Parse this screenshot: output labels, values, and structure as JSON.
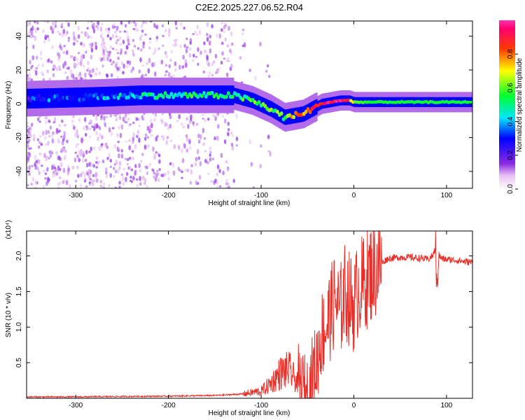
{
  "title": "C2E2.2025.227.06.52.R04",
  "chart_data": [
    {
      "type": "heatmap",
      "xlabel": "Height of straight line (km)",
      "ylabel": "Frequency (Hz)",
      "xlim": [
        -353,
        128
      ],
      "ylim": [
        -50,
        49
      ],
      "xticks": [
        -300,
        -200,
        -100,
        0,
        100
      ],
      "yticks": [
        -40,
        -20,
        0,
        20,
        40
      ],
      "colorbar": {
        "label": "Normalized spectral amplitude",
        "range": [
          0,
          1
        ],
        "ticks": [
          "0.0",
          "0.2",
          "0.4",
          "0.6",
          "0.8"
        ]
      },
      "ridge": {
        "x": [
          -353,
          -280,
          -230,
          -180,
          -130,
          -110,
          -90,
          -75,
          -65,
          -55,
          -45,
          -35,
          -25,
          -15,
          -5,
          0,
          20,
          60,
          100,
          128
        ],
        "frequency": [
          3,
          4,
          5,
          5,
          5,
          2,
          -3,
          -8,
          -7,
          -6,
          -3,
          0,
          1,
          2,
          2,
          1,
          1,
          1,
          1,
          1
        ],
        "amplitude": [
          0.3,
          0.35,
          0.45,
          0.5,
          0.5,
          0.55,
          0.6,
          0.55,
          0.75,
          0.8,
          0.85,
          0.9,
          0.95,
          0.95,
          0.9,
          0.6,
          0.55,
          0.55,
          0.55,
          0.55
        ]
      },
      "scatter_note": ""
    },
    {
      "type": "line",
      "xlabel": "Height of straight line (km)",
      "ylabel": "SNR (10 * v/v)",
      "yscale_label": "(x10⁴)",
      "xlim": [
        -353,
        128
      ],
      "ylim": [
        0,
        2.35
      ],
      "xticks": [
        -300,
        -200,
        -100,
        0,
        100
      ],
      "yticks": [
        "0.5",
        "1.0",
        "1.5",
        "2.0"
      ],
      "series": [
        {
          "color": "#e8302a",
          "x": [
            -353,
            -300,
            -250,
            -200,
            -150,
            -120,
            -100,
            -90,
            -80,
            -70,
            -60,
            -55,
            -50,
            -45,
            -40,
            -35,
            -30,
            -25,
            -20,
            -15,
            -10,
            -5,
            0,
            5,
            10,
            15,
            20,
            25,
            30,
            35,
            40,
            50,
            60,
            70,
            80,
            85,
            88,
            90,
            92,
            95,
            100,
            110,
            120,
            128
          ],
          "y": [
            0.02,
            0.02,
            0.025,
            0.03,
            0.04,
            0.06,
            0.1,
            0.2,
            0.35,
            0.4,
            0.2,
            0.1,
            0.05,
            0.3,
            0.5,
            0.9,
            1.0,
            1.2,
            1.4,
            1.2,
            1.5,
            1.4,
            1.3,
            1.55,
            1.6,
            1.7,
            1.8,
            1.85,
            1.9,
            1.95,
            1.97,
            1.98,
            1.98,
            1.97,
            1.95,
            2.0,
            2.1,
            1.7,
            2.0,
            1.96,
            1.95,
            1.94,
            1.92,
            1.91
          ]
        }
      ]
    }
  ]
}
